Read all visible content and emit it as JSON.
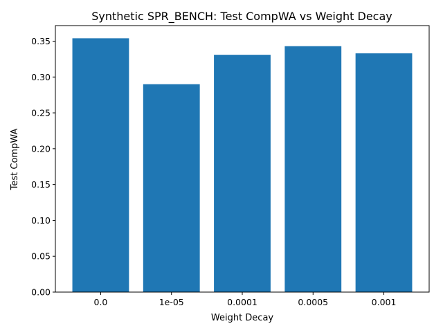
{
  "chart_data": {
    "type": "bar",
    "title": "Synthetic SPR_BENCH: Test CompWA vs Weight Decay",
    "xlabel": "Weight Decay",
    "ylabel": "Test CompWA",
    "categories": [
      "0.0",
      "1e-05",
      "0.0001",
      "0.0005",
      "0.001"
    ],
    "values": [
      0.354,
      0.29,
      0.331,
      0.343,
      0.333
    ],
    "ylim": [
      0,
      0.3717
    ],
    "yticks": [
      0.0,
      0.05,
      0.1,
      0.15,
      0.2,
      0.25,
      0.3,
      0.35
    ],
    "ytick_labels": [
      "0.00",
      "0.05",
      "0.10",
      "0.15",
      "0.20",
      "0.25",
      "0.30",
      "0.35"
    ],
    "bar_color": "#1f77b4",
    "grid": false,
    "legend": "none"
  }
}
